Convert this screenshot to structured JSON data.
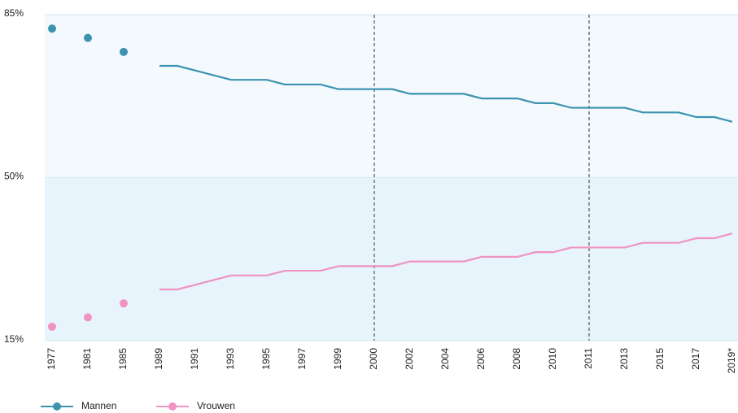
{
  "chart_data": {
    "type": "line",
    "categories": [
      "1977",
      null,
      "1981",
      null,
      "1985",
      null,
      "1989",
      null,
      "1991",
      null,
      "1993",
      null,
      "1995",
      null,
      "1997",
      null,
      "1999",
      null,
      "2000",
      null,
      "2002",
      null,
      "2004",
      null,
      "2006",
      null,
      "2008",
      null,
      "2010",
      null,
      "2011",
      null,
      "2013",
      null,
      "2015",
      null,
      "2017",
      null,
      "2019*"
    ],
    "series": [
      {
        "name": "Mannen",
        "color": "#3c93b0",
        "values": [
          82,
          null,
          80,
          null,
          77,
          null,
          74,
          74,
          73,
          72,
          71,
          71,
          71,
          70,
          70,
          70,
          69,
          69,
          69,
          69,
          68,
          68,
          68,
          68,
          67,
          67,
          67,
          66,
          66,
          65,
          65,
          65,
          65,
          64,
          64,
          64,
          63,
          63,
          62
        ]
      },
      {
        "name": "Vrouwen",
        "color": "#ee93c2",
        "values": [
          18,
          null,
          20,
          null,
          23,
          null,
          26,
          26,
          27,
          28,
          29,
          29,
          29,
          30,
          30,
          30,
          31,
          31,
          31,
          31,
          32,
          32,
          32,
          32,
          33,
          33,
          33,
          34,
          34,
          35,
          35,
          35,
          35,
          36,
          36,
          36,
          37,
          37,
          38
        ]
      }
    ],
    "ylim": [
      15,
      85
    ],
    "yticks": [
      {
        "value": 15,
        "label": "15%"
      },
      {
        "value": 50,
        "label": "50%"
      },
      {
        "value": 85,
        "label": "85%"
      }
    ],
    "dashed_at": [
      "2000",
      "2011"
    ],
    "legend": "bottom-left"
  }
}
